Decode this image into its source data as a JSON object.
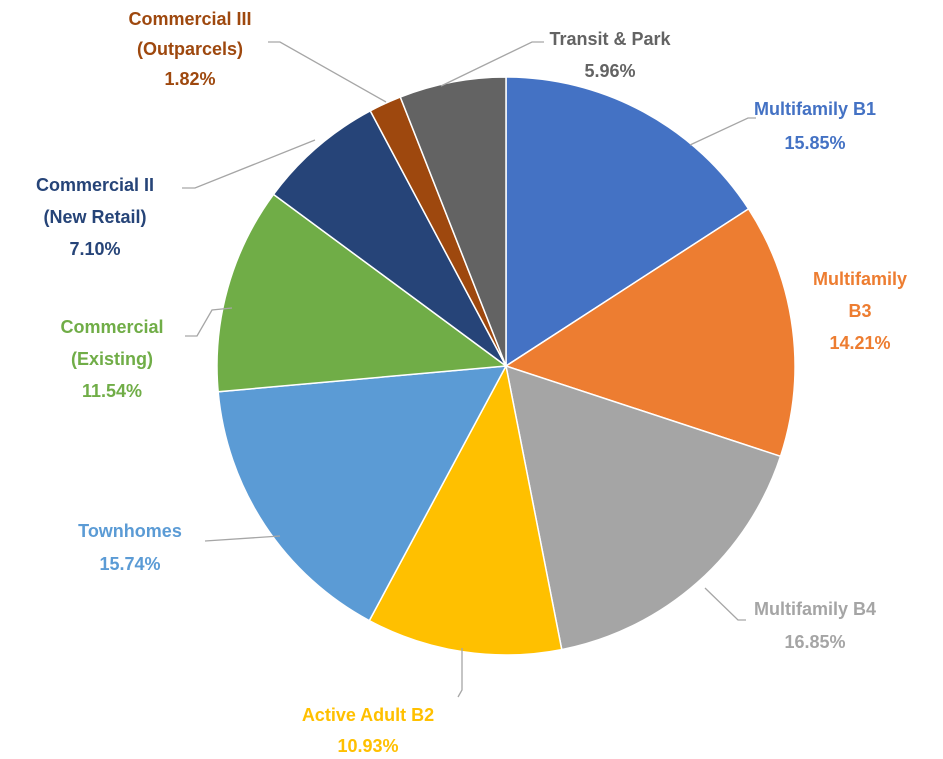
{
  "chart_data": {
    "type": "pie",
    "categories": [
      [
        "Multifamily B1"
      ],
      [
        "Multifamily",
        "B3"
      ],
      [
        "Multifamily B4"
      ],
      [
        "Active Adult B2"
      ],
      [
        "Townhomes"
      ],
      [
        "Commercial",
        "(Existing)"
      ],
      [
        "Commercial II",
        "(New Retail)"
      ],
      [
        "Commercial III",
        "(Outparcels)"
      ],
      [
        "Transit & Park"
      ]
    ],
    "values": [
      15.85,
      14.21,
      16.85,
      10.93,
      15.74,
      11.54,
      7.1,
      1.82,
      5.96
    ],
    "value_labels": [
      "15.85%",
      "14.21%",
      "16.85%",
      "10.93%",
      "15.74%",
      "11.54%",
      "7.10%",
      "1.82%",
      "5.96%"
    ],
    "colors": [
      "#4472c4",
      "#ed7d31",
      "#a5a5a5",
      "#ffc000",
      "#5b9bd5",
      "#70ad47",
      "#264478",
      "#9e480e",
      "#636363"
    ]
  }
}
